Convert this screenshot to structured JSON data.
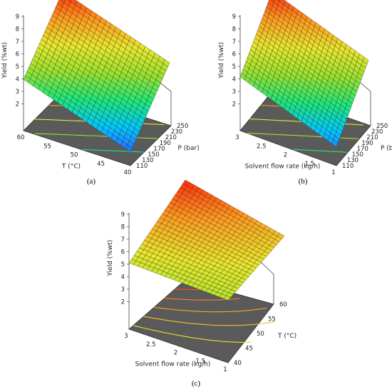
{
  "chart_data": [
    {
      "type": "surface",
      "panel_label": "(a)",
      "panel_letter": "a",
      "xlabel": "T (°C)",
      "ylabel": "P (bar)",
      "zlabel": "Yield (%wt)",
      "x_ticks": [
        "60",
        "55",
        "50",
        "45",
        "40"
      ],
      "y_ticks": [
        "110",
        "130",
        "150",
        "170",
        "190",
        "210",
        "230",
        "250"
      ],
      "z_ticks": [
        "2",
        "3",
        "4",
        "5",
        "6",
        "7",
        "8",
        "9"
      ],
      "xlim": [
        60,
        40
      ],
      "ylim": [
        110,
        250
      ],
      "zlim": [
        1,
        9
      ],
      "corner_values": {
        "x0y0": 5.1,
        "x1y0": 2.1,
        "x0y1": 9.0,
        "x1y1": 6.1
      },
      "floor_contours": 4,
      "grid": true
    },
    {
      "type": "surface",
      "panel_label": "(b)",
      "panel_letter": "b",
      "xlabel": "Solvent flow rate (kg/h)",
      "ylabel": "P (bar)",
      "zlabel": "Yield (%wt)",
      "x_ticks": [
        "3",
        "2.5",
        "2",
        "1.5",
        "1"
      ],
      "y_ticks": [
        "110",
        "130",
        "150",
        "170",
        "190",
        "210",
        "230",
        "250"
      ],
      "z_ticks": [
        "2",
        "3",
        "4",
        "5",
        "6",
        "7",
        "8",
        "9"
      ],
      "xlim": [
        3,
        1
      ],
      "ylim": [
        110,
        250
      ],
      "zlim": [
        1,
        9
      ],
      "corner_values": {
        "x0y0": 5.3,
        "x1y0": 2.5,
        "x0y1": 9.0,
        "x1y1": 6.3
      },
      "floor_contours": 4,
      "grid": true
    },
    {
      "type": "surface",
      "panel_label": "(c)",
      "panel_letter": "c",
      "xlabel": "Solvent flow rate (kg/h)",
      "ylabel": "T (°C)",
      "zlabel": "Yield (%wt)",
      "x_ticks": [
        "3",
        "2.5",
        "2",
        "1.5",
        "1"
      ],
      "y_ticks": [
        "40",
        "45",
        "50",
        "55",
        "60"
      ],
      "z_ticks": [
        "2",
        "3",
        "4",
        "5",
        "6",
        "7",
        "8",
        "9"
      ],
      "xlim": [
        3,
        1
      ],
      "ylim": [
        40,
        60
      ],
      "zlim": [
        1,
        9
      ],
      "corner_values": {
        "x0y0": 6.3,
        "x1y0": 6.0,
        "x0y1": 9.0,
        "x1y1": 7.2
      },
      "floor_contours": 5,
      "grid": true
    }
  ],
  "colors": {
    "floor": "#5a5a5a",
    "frame": "#444444",
    "colormap": [
      "#2f5fff",
      "#00c8ff",
      "#1ee878",
      "#9be22c",
      "#e8e82c",
      "#ff9a1e",
      "#ff2a0a"
    ]
  }
}
